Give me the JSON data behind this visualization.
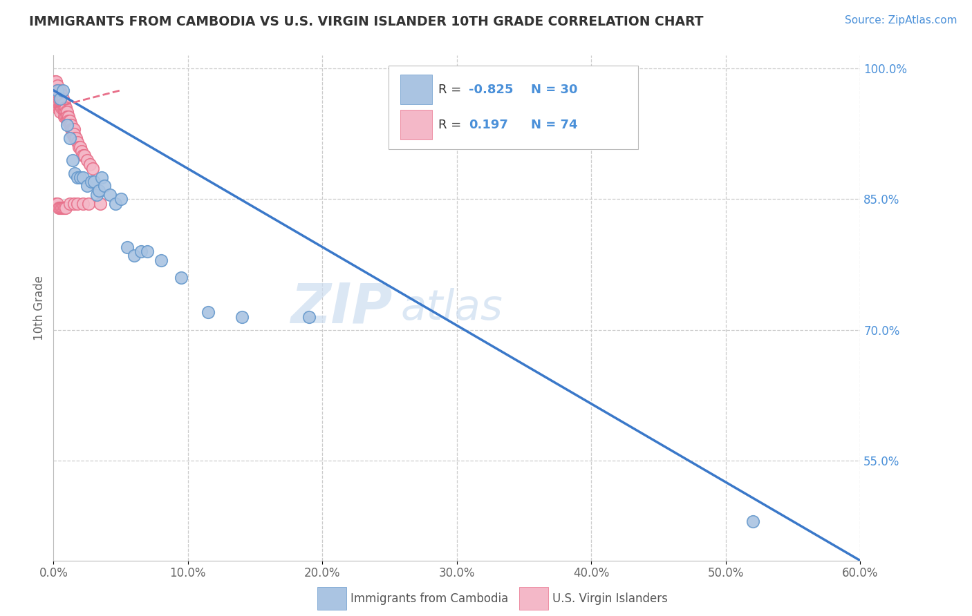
{
  "title": "IMMIGRANTS FROM CAMBODIA VS U.S. VIRGIN ISLANDER 10TH GRADE CORRELATION CHART",
  "source": "Source: ZipAtlas.com",
  "ylabel": "10th Grade",
  "legend_blue_label": "Immigrants from Cambodia",
  "legend_pink_label": "U.S. Virgin Islanders",
  "R_blue": -0.825,
  "N_blue": 30,
  "R_pink": 0.197,
  "N_pink": 74,
  "xlim": [
    0.0,
    0.6
  ],
  "ylim": [
    0.435,
    1.015
  ],
  "xticks": [
    0.0,
    0.1,
    0.2,
    0.3,
    0.4,
    0.5,
    0.6
  ],
  "yticks_right": [
    0.55,
    0.7,
    0.85,
    1.0
  ],
  "xtick_labels": [
    "0.0%",
    "10.0%",
    "20.0%",
    "30.0%",
    "40.0%",
    "50.0%",
    "60.0%"
  ],
  "ytick_labels_right": [
    "55.0%",
    "70.0%",
    "85.0%",
    "100.0%"
  ],
  "grid_color": "#cccccc",
  "background_color": "#ffffff",
  "blue_dot_color": "#aac4e2",
  "blue_dot_edge": "#6699cc",
  "pink_dot_color": "#f4b8c8",
  "pink_dot_edge": "#e8708a",
  "blue_line_color": "#3a78c9",
  "pink_line_color": "#e8708a",
  "watermark_zip": "ZIP",
  "watermark_atlas": "atlas",
  "blue_dots_x": [
    0.003,
    0.005,
    0.007,
    0.01,
    0.012,
    0.014,
    0.016,
    0.018,
    0.02,
    0.022,
    0.025,
    0.028,
    0.03,
    0.032,
    0.034,
    0.036,
    0.038,
    0.042,
    0.046,
    0.05,
    0.055,
    0.06,
    0.065,
    0.07,
    0.08,
    0.095,
    0.115,
    0.14,
    0.19,
    0.52
  ],
  "blue_dots_y": [
    0.975,
    0.965,
    0.975,
    0.935,
    0.92,
    0.895,
    0.88,
    0.875,
    0.875,
    0.875,
    0.865,
    0.87,
    0.87,
    0.855,
    0.86,
    0.875,
    0.865,
    0.855,
    0.845,
    0.85,
    0.795,
    0.785,
    0.79,
    0.79,
    0.78,
    0.76,
    0.72,
    0.715,
    0.715,
    0.48
  ],
  "pink_dots_x": [
    0.001,
    0.001,
    0.001,
    0.002,
    0.002,
    0.002,
    0.002,
    0.003,
    0.003,
    0.003,
    0.003,
    0.003,
    0.004,
    0.004,
    0.004,
    0.004,
    0.005,
    0.005,
    0.005,
    0.005,
    0.005,
    0.005,
    0.006,
    0.006,
    0.006,
    0.006,
    0.007,
    0.007,
    0.007,
    0.008,
    0.008,
    0.008,
    0.008,
    0.009,
    0.009,
    0.009,
    0.01,
    0.01,
    0.01,
    0.011,
    0.011,
    0.012,
    0.012,
    0.013,
    0.013,
    0.014,
    0.014,
    0.015,
    0.015,
    0.016,
    0.017,
    0.018,
    0.019,
    0.02,
    0.021,
    0.022,
    0.023,
    0.025,
    0.027,
    0.029,
    0.002,
    0.003,
    0.004,
    0.005,
    0.006,
    0.007,
    0.008,
    0.009,
    0.012,
    0.015,
    0.018,
    0.022,
    0.026,
    0.035
  ],
  "pink_dots_y": [
    0.985,
    0.975,
    0.97,
    0.985,
    0.975,
    0.965,
    0.96,
    0.98,
    0.975,
    0.965,
    0.96,
    0.955,
    0.975,
    0.97,
    0.96,
    0.955,
    0.975,
    0.97,
    0.965,
    0.96,
    0.955,
    0.95,
    0.97,
    0.965,
    0.96,
    0.955,
    0.965,
    0.96,
    0.955,
    0.96,
    0.955,
    0.95,
    0.945,
    0.955,
    0.95,
    0.945,
    0.95,
    0.945,
    0.94,
    0.945,
    0.94,
    0.94,
    0.935,
    0.935,
    0.93,
    0.93,
    0.925,
    0.93,
    0.925,
    0.92,
    0.92,
    0.915,
    0.91,
    0.91,
    0.905,
    0.9,
    0.9,
    0.895,
    0.89,
    0.885,
    0.845,
    0.845,
    0.84,
    0.84,
    0.84,
    0.84,
    0.84,
    0.84,
    0.845,
    0.845,
    0.845,
    0.845,
    0.845,
    0.845
  ],
  "blue_trend_x": [
    0.0,
    0.6
  ],
  "blue_trend_y": [
    0.975,
    0.435
  ],
  "pink_trend_x": [
    0.0,
    0.05
  ],
  "pink_trend_y": [
    0.955,
    0.975
  ]
}
